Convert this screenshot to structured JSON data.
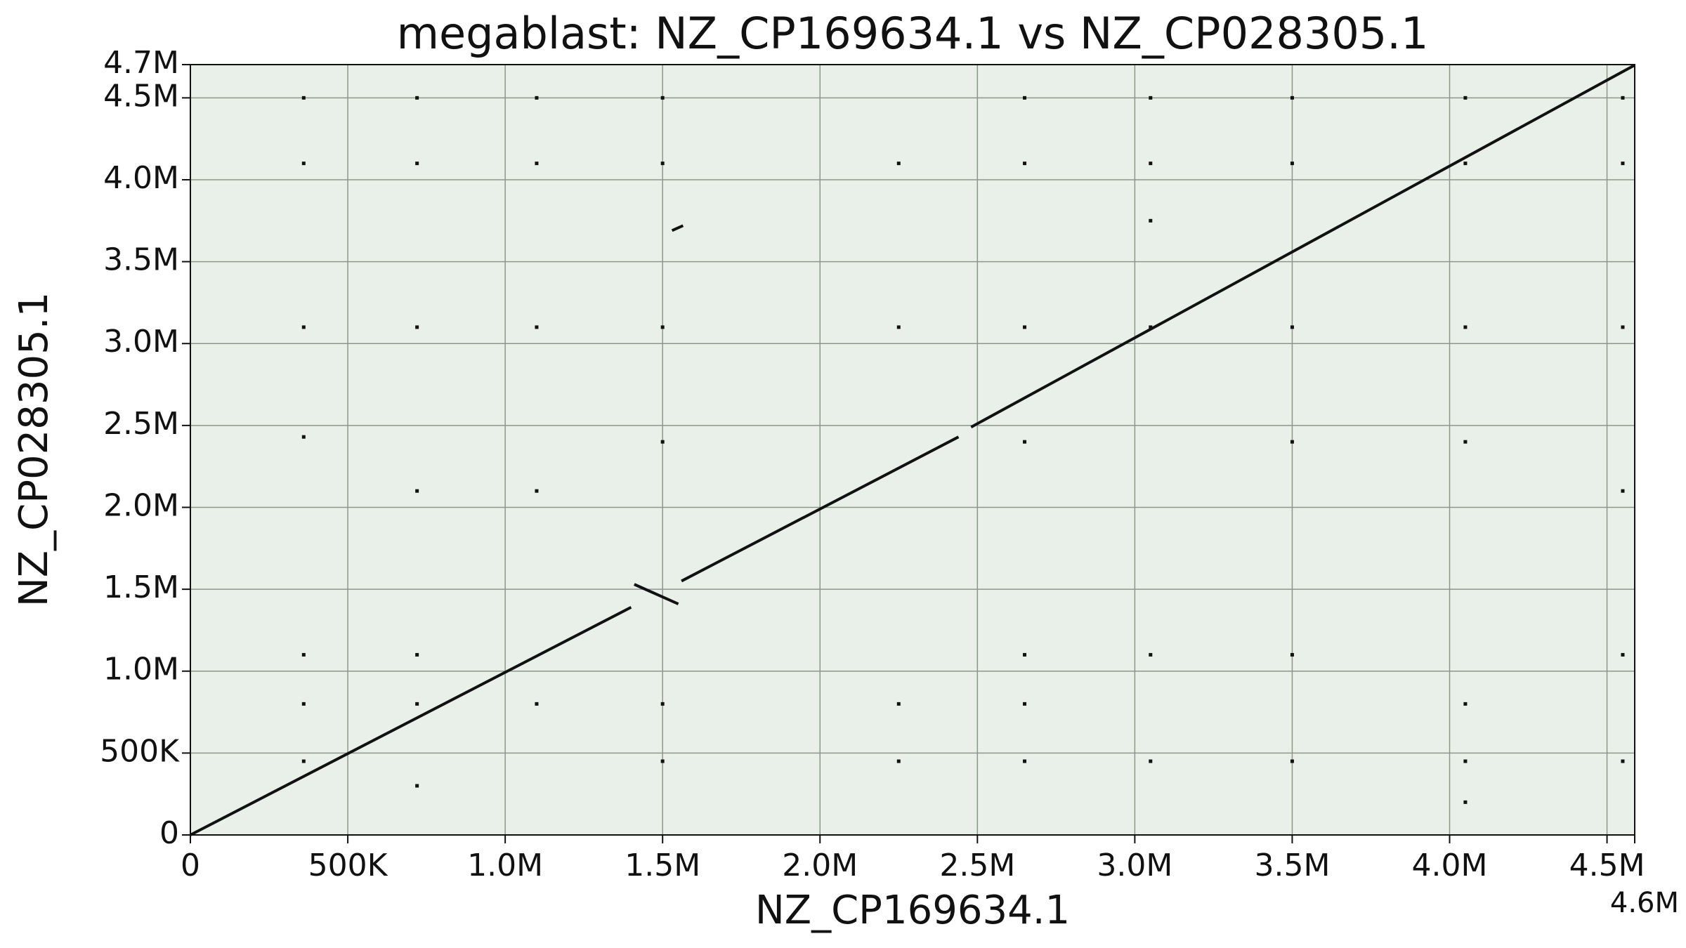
{
  "chart_data": {
    "type": "dotplot",
    "title": "megablast: NZ_CP169634.1 vs NZ_CP028305.1",
    "xlabel": "NZ_CP169634.1",
    "ylabel": "NZ_CP028305.1",
    "xlim": [
      0,
      4588000
    ],
    "ylim": [
      0,
      4703000
    ],
    "xlim_label": {
      "value": 4588000,
      "label": "4.6M"
    },
    "xticks": [
      0,
      {
        "value": 500000,
        "label": "500K"
      },
      {
        "value": 1000000,
        "label": "1.0M"
      },
      {
        "value": 1500000,
        "label": "1.5M"
      },
      {
        "value": 2000000,
        "label": "2.0M"
      },
      {
        "value": 2500000,
        "label": "2.5M"
      },
      {
        "value": 3000000,
        "label": "3.0M"
      },
      {
        "value": 3500000,
        "label": "3.5M"
      },
      {
        "value": 4000000,
        "label": "4.0M"
      },
      {
        "value": 4500000,
        "label": "4.5M"
      }
    ],
    "yticks": [
      0,
      {
        "value": 500000,
        "label": "500K"
      },
      {
        "value": 1000000,
        "label": "1.0M"
      },
      {
        "value": 1500000,
        "label": "1.5M"
      },
      {
        "value": 2000000,
        "label": "2.0M"
      },
      {
        "value": 2500000,
        "label": "2.5M"
      },
      {
        "value": 3000000,
        "label": "3.0M"
      },
      {
        "value": 3500000,
        "label": "3.5M"
      },
      {
        "value": 4000000,
        "label": "4.0M"
      },
      {
        "value": 4500000,
        "label": "4.5M"
      },
      {
        "value": 4703000,
        "label": "4.7M"
      }
    ],
    "grid": true,
    "background": "#e9f0e9",
    "color": "#111111",
    "segments": [
      {
        "x": [
          0,
          1400000
        ],
        "y": [
          0,
          1390000
        ]
      },
      {
        "x": [
          1410000,
          1550000
        ],
        "y": [
          1530000,
          1410000
        ]
      },
      {
        "x": [
          1530000,
          1565000
        ],
        "y": [
          3690000,
          3720000
        ]
      },
      {
        "x": [
          1560000,
          2440000
        ],
        "y": [
          1550000,
          2430000
        ]
      },
      {
        "x": [
          2480000,
          4588000
        ],
        "y": [
          2490000,
          4700000
        ]
      }
    ],
    "points": {
      "x": [
        360000,
        360000,
        360000,
        360000,
        360000,
        360000,
        360000,
        720000,
        720000,
        720000,
        720000,
        720000,
        720000,
        720000,
        1100000,
        1100000,
        1100000,
        1100000,
        1100000,
        1500000,
        1500000,
        1500000,
        1500000,
        1500000,
        1500000,
        2250000,
        2250000,
        2250000,
        2250000,
        2650000,
        2650000,
        2650000,
        2650000,
        2650000,
        2650000,
        2650000,
        3050000,
        3050000,
        3050000,
        3050000,
        3050000,
        3050000,
        3500000,
        3500000,
        3500000,
        3500000,
        3500000,
        3500000,
        4050000,
        4050000,
        4050000,
        4050000,
        4050000,
        4050000,
        4050000,
        4550000,
        4550000,
        4550000,
        4550000,
        4550000,
        4550000
      ],
      "y": [
        4500000,
        4100000,
        3100000,
        2430000,
        1100000,
        800000,
        450000,
        4500000,
        4100000,
        3100000,
        2100000,
        1100000,
        800000,
        300000,
        4500000,
        4100000,
        3100000,
        2100000,
        800000,
        4500000,
        4100000,
        3100000,
        2400000,
        800000,
        450000,
        4100000,
        3100000,
        800000,
        450000,
        4500000,
        4100000,
        3100000,
        2400000,
        1100000,
        800000,
        450000,
        4500000,
        4100000,
        3750000,
        3100000,
        1100000,
        450000,
        4500000,
        4100000,
        3100000,
        2400000,
        1100000,
        450000,
        4500000,
        4100000,
        3100000,
        2400000,
        800000,
        450000,
        200000,
        4500000,
        4100000,
        3100000,
        2100000,
        1100000,
        450000
      ]
    }
  }
}
